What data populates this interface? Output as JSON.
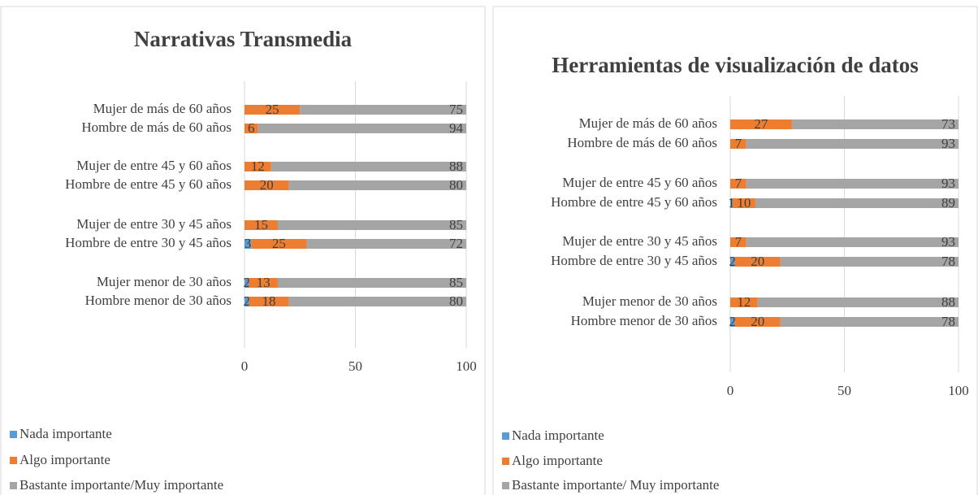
{
  "chart_data": [
    {
      "type": "bar",
      "orientation": "horizontal",
      "stacked": true,
      "title": "Narrativas Transmedia",
      "categories": [
        "Mujer de más de 60 años",
        "Hombre de más de 60 años",
        "Mujer de entre 45 y 60 años",
        "Hombre de entre 45 y 60 años",
        "Mujer de entre 30 y 45 años",
        "Hombre de entre 30 y 45 años",
        "Mujer menor de 30 años",
        "Hombre menor de 30 años"
      ],
      "series": [
        {
          "name": "Nada importante",
          "color": "#5b9bd5",
          "values": [
            null,
            null,
            null,
            null,
            null,
            3,
            2,
            2
          ]
        },
        {
          "name": "Algo importante",
          "color": "#ed7d31",
          "values": [
            25,
            6,
            12,
            20,
            15,
            25,
            13,
            18
          ]
        },
        {
          "name": "Bastante importante/Muy importante",
          "color": "#a5a5a5",
          "values": [
            75,
            94,
            88,
            80,
            85,
            72,
            85,
            80
          ]
        }
      ],
      "xlim": [
        0,
        100
      ],
      "xticks": [
        0,
        50,
        100
      ],
      "grid": true,
      "legend": "bottom"
    },
    {
      "type": "bar",
      "orientation": "horizontal",
      "stacked": true,
      "title": "Herramientas de visualización de datos",
      "categories": [
        "Mujer de más de 60 años",
        "Hombre de más de 60 años",
        "Mujer de entre 45 y 60 años",
        "Hombre de entre 45 y 60 años",
        "Mujer de entre 30 y 45 años",
        "Hombre de entre 30 y 45 años",
        "Mujer menor de 30 años",
        "Hombre menor de 30 años"
      ],
      "series": [
        {
          "name": "Nada importante",
          "color": "#5b9bd5",
          "values": [
            null,
            null,
            null,
            1,
            null,
            2,
            null,
            2
          ]
        },
        {
          "name": "Algo importante",
          "color": "#ed7d31",
          "values": [
            27,
            7,
            7,
            10,
            7,
            20,
            12,
            20
          ]
        },
        {
          "name": "Bastante importante/ Muy importante",
          "color": "#a5a5a5",
          "values": [
            73,
            93,
            93,
            89,
            93,
            78,
            88,
            78
          ]
        }
      ],
      "xlim": [
        0,
        100
      ],
      "xticks": [
        0,
        50,
        100
      ],
      "grid": true,
      "legend": "bottom"
    }
  ]
}
